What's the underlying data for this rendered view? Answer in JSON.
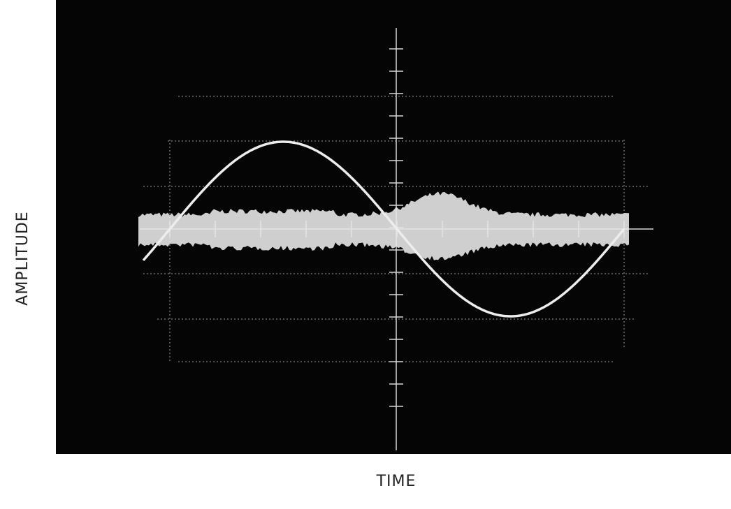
{
  "y_axis_label": "AMPLITUDE",
  "x_axis_label": "TIME"
}
